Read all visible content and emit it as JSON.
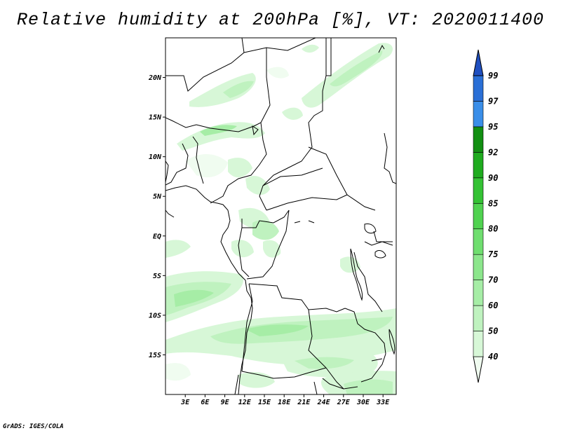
{
  "title": "Relative humidity at 200hPa [%], VT: 2020011400",
  "map": {
    "lon_range": [
      0,
      35
    ],
    "lat_range": [
      -20,
      25
    ],
    "lat_ticks": [
      "20N",
      "15N",
      "10N",
      "5N",
      "EQ",
      "5S",
      "10S",
      "15S"
    ],
    "lon_ticks": [
      "3E",
      "6E",
      "9E",
      "12E",
      "15E",
      "18E",
      "21E",
      "24E",
      "27E",
      "30E",
      "33E"
    ]
  },
  "colorbar": {
    "levels": [
      "40",
      "50",
      "60",
      "70",
      "75",
      "80",
      "85",
      "90",
      "92",
      "95",
      "97",
      "99"
    ],
    "colors": [
      "#f0fcf0",
      "#d7f7d7",
      "#bff2bf",
      "#a6eda6",
      "#8ce68c",
      "#6fde6f",
      "#50d250",
      "#34c234",
      "#1fab1f",
      "#128f12",
      "#3a8ee8",
      "#2a6fd6",
      "#1f4fc0"
    ]
  },
  "credit": "GrADS: IGES/COLA"
}
